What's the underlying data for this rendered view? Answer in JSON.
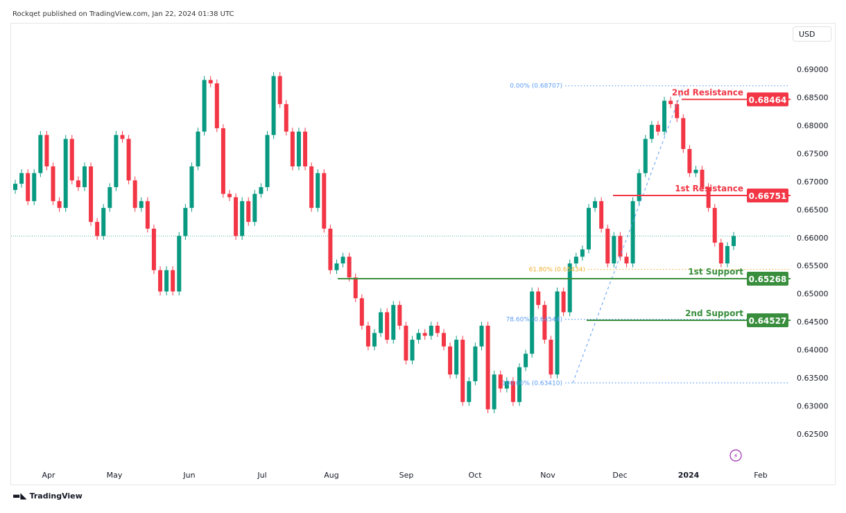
{
  "header": {
    "published": "Rockqet published on TradingView.com, Jan 22, 2024 01:38 UTC"
  },
  "footer": {
    "brand": "TradingView"
  },
  "currency": "USD",
  "colors": {
    "up": "#089981",
    "down": "#f23645",
    "resistance": "#f23645",
    "support": "#388e3c",
    "fib_blue": "#5b9cf6",
    "fib_orange": "#f0b030"
  },
  "chart_data": {
    "type": "candlestick",
    "y_ticks": [
      "0.69000",
      "0.68500",
      "0.68000",
      "0.67500",
      "0.67000",
      "0.66500",
      "0.66000",
      "0.65500",
      "0.65000",
      "0.64500",
      "0.64000",
      "0.63500",
      "0.63000",
      "0.62500"
    ],
    "ylim": [
      0.6215,
      0.6935
    ],
    "x_ticks": [
      "Apr",
      "May",
      "Jun",
      "Jul",
      "Aug",
      "Sep",
      "Oct",
      "Nov",
      "Dec",
      "2024",
      "Feb"
    ],
    "first_open": 0.6685,
    "closes": [
      0.6696,
      0.6715,
      0.6665,
      0.6715,
      0.6783,
      0.6727,
      0.6665,
      0.6653,
      0.6776,
      0.6702,
      0.669,
      0.6727,
      0.6628,
      0.6603,
      0.6653,
      0.669,
      0.6783,
      0.6776,
      0.6702,
      0.6653,
      0.6665,
      0.6616,
      0.6542,
      0.6504,
      0.6542,
      0.6504,
      0.6603,
      0.6653,
      0.6727,
      0.6789,
      0.6881,
      0.6875,
      0.6795,
      0.6678,
      0.6672,
      0.6603,
      0.6665,
      0.6628,
      0.6678,
      0.669,
      0.6783,
      0.6888,
      0.6838,
      0.6789,
      0.6727,
      0.6789,
      0.6727,
      0.6653,
      0.6715,
      0.6616,
      0.6542,
      0.6554,
      0.6566,
      0.6529,
      0.6492,
      0.6443,
      0.6406,
      0.643,
      0.6467,
      0.6418,
      0.648,
      0.6443,
      0.6381,
      0.6418,
      0.643,
      0.6425,
      0.6443,
      0.643,
      0.6406,
      0.6356,
      0.6418,
      0.6307,
      0.6344,
      0.6406,
      0.6443,
      0.6294,
      0.6356,
      0.6331,
      0.6344,
      0.6307,
      0.6369,
      0.6393,
      0.6504,
      0.648,
      0.6418,
      0.6356,
      0.6504,
      0.6467,
      0.6554,
      0.6566,
      0.6579,
      0.6653,
      0.6665,
      0.6616,
      0.6554,
      0.6603,
      0.6566,
      0.6554,
      0.6665,
      0.6715,
      0.6776,
      0.6801,
      0.6789,
      0.6844,
      0.6838,
      0.6813,
      0.6758,
      0.6715,
      0.6721,
      0.669,
      0.6653,
      0.6591,
      0.6554,
      0.6585,
      0.6603
    ],
    "current_price": 0.6603,
    "levels": [
      {
        "name": "2nd Resistance",
        "price": 0.68464,
        "label": "0.68464",
        "kind": "resistance"
      },
      {
        "name": "1st Resistance",
        "price": 0.66751,
        "label": "0.66751",
        "kind": "resistance"
      },
      {
        "name": "1st Support",
        "price": 0.65268,
        "label": "0.65268",
        "kind": "support"
      },
      {
        "name": "2nd Support",
        "price": 0.64527,
        "label": "0.64527",
        "kind": "support"
      }
    ],
    "fib": [
      {
        "label": "0.00% (0.68707)",
        "price": 0.68707,
        "color": "#5b9cf6"
      },
      {
        "label": "61.80% (0.65434)",
        "price": 0.65434,
        "color": "#f0b030"
      },
      {
        "label": "78.60% (0.64544)",
        "price": 0.64544,
        "color": "#5b9cf6"
      },
      {
        "label": "100.00% (0.63410)",
        "price": 0.6341,
        "color": "#5b9cf6"
      }
    ]
  }
}
